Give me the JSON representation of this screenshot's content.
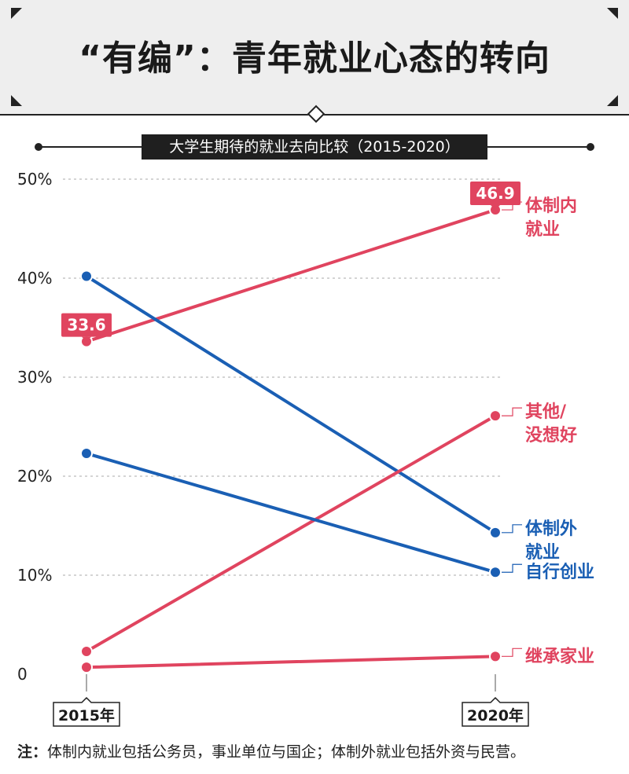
{
  "title": "“有编”：青年就业心态的转向",
  "footnote": {
    "prefix": "注：",
    "text": "体制内就业包括公务员，事业单位与国企；体制外就业包括外资与民营。"
  },
  "colors": {
    "red": "#e0445f",
    "blue": "#1a5fb4",
    "grid": "#bbbbbb"
  },
  "chart_data": {
    "type": "line",
    "title": "大学生期待的就业去向比较（2015-2020）",
    "x": [
      "2015年",
      "2020年"
    ],
    "ylim": [
      0,
      50
    ],
    "yticks": [
      0,
      10,
      20,
      30,
      40,
      50
    ],
    "ytick_labels": [
      "0",
      "10%",
      "20%",
      "30%",
      "40%",
      "50%"
    ],
    "grid": true,
    "series": [
      {
        "name": "体制内就业",
        "label_lines": [
          "体制内",
          "就业"
        ],
        "values": [
          33.6,
          46.9
        ],
        "color": "#e0445f",
        "data_labels": [
          "33.6",
          "46.9"
        ]
      },
      {
        "name": "体制外就业",
        "label_lines": [
          "体制外",
          "就业"
        ],
        "values": [
          40.2,
          14.3
        ],
        "color": "#1a5fb4"
      },
      {
        "name": "其他/没想好",
        "label_lines": [
          "其他/",
          "没想好"
        ],
        "values": [
          2.3,
          26.1
        ],
        "color": "#e0445f"
      },
      {
        "name": "自行创业",
        "label_lines": [
          "自行创业"
        ],
        "values": [
          22.3,
          10.3
        ],
        "color": "#1a5fb4"
      },
      {
        "name": "继承家业",
        "label_lines": [
          "继承家业"
        ],
        "values": [
          0.7,
          1.8
        ],
        "color": "#e0445f"
      }
    ]
  }
}
